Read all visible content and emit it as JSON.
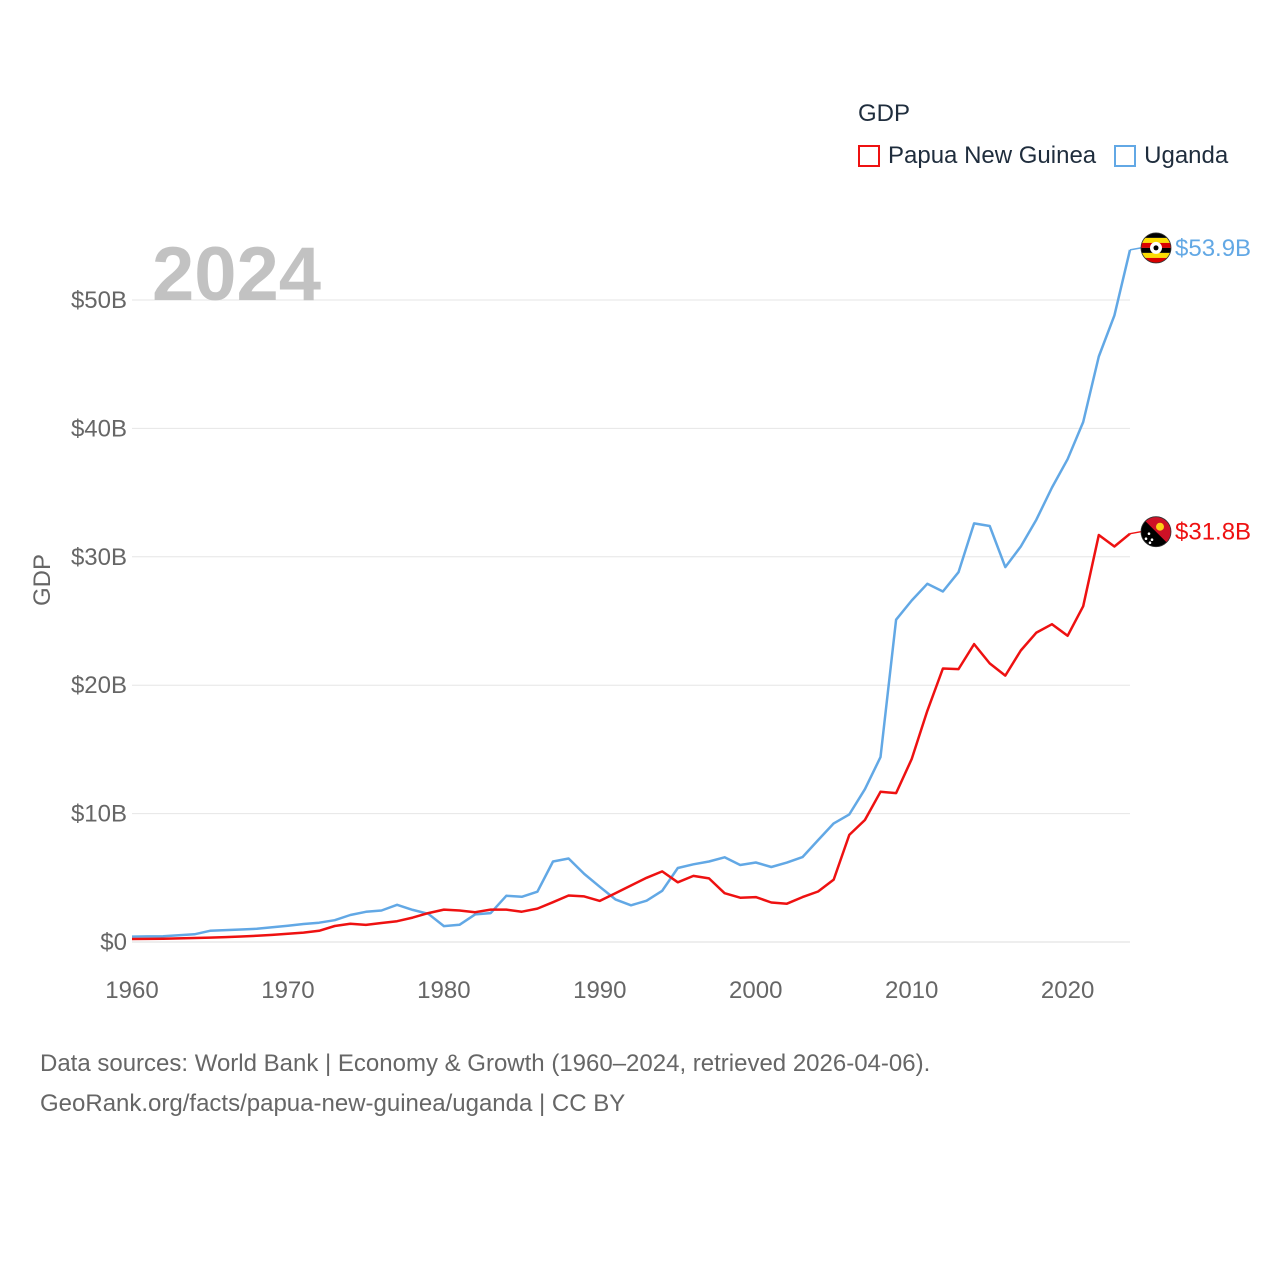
{
  "legend": {
    "title": "GDP",
    "items": [
      {
        "label": "Papua New Guinea",
        "color": "#ee1111"
      },
      {
        "label": "Uganda",
        "color": "#62a8e5"
      }
    ]
  },
  "year_label": "2024",
  "footer": {
    "line1": "Data sources: World Bank | Economy & Growth (1960–2024, retrieved 2026-04-06).",
    "line2": "GeoRank.org/facts/papua-new-guinea/uganda | CC BY"
  },
  "chart_data": {
    "type": "line",
    "title": "",
    "xlabel": "",
    "ylabel": "GDP",
    "xlim": [
      1960,
      2024
    ],
    "ylim": [
      0,
      55
    ],
    "x_ticks": [
      1960,
      1970,
      1980,
      1990,
      2000,
      2010,
      2020
    ],
    "y_ticks": [
      0,
      10,
      20,
      30,
      40,
      50
    ],
    "y_tick_labels": [
      "$0",
      "$10B",
      "$20B",
      "$30B",
      "$40B",
      "$50B"
    ],
    "grid": true,
    "legend_position": "top-right",
    "x": [
      1960,
      1961,
      1962,
      1963,
      1964,
      1965,
      1966,
      1967,
      1968,
      1969,
      1970,
      1971,
      1972,
      1973,
      1974,
      1975,
      1976,
      1977,
      1978,
      1979,
      1980,
      1981,
      1982,
      1983,
      1984,
      1985,
      1986,
      1987,
      1988,
      1989,
      1990,
      1991,
      1992,
      1993,
      1994,
      1995,
      1996,
      1997,
      1998,
      1999,
      2000,
      2001,
      2002,
      2003,
      2004,
      2005,
      2006,
      2007,
      2008,
      2009,
      2010,
      2011,
      2012,
      2013,
      2014,
      2015,
      2016,
      2017,
      2018,
      2019,
      2020,
      2021,
      2022,
      2023,
      2024
    ],
    "series": [
      {
        "name": "Papua New Guinea",
        "color": "#ee1111",
        "end_label": "$31.8B",
        "flag": "papua-new-guinea-flag-icon",
        "values": [
          0.23,
          0.24,
          0.26,
          0.28,
          0.31,
          0.34,
          0.38,
          0.43,
          0.48,
          0.55,
          0.65,
          0.73,
          0.87,
          1.25,
          1.42,
          1.33,
          1.48,
          1.62,
          1.9,
          2.25,
          2.52,
          2.45,
          2.32,
          2.52,
          2.52,
          2.36,
          2.6,
          3.1,
          3.62,
          3.55,
          3.2,
          3.8,
          4.4,
          5.0,
          5.5,
          4.65,
          5.15,
          4.95,
          3.8,
          3.45,
          3.5,
          3.08,
          2.98,
          3.5,
          3.93,
          4.86,
          8.34,
          9.5,
          11.7,
          11.6,
          14.25,
          18.0,
          21.3,
          21.25,
          23.2,
          21.7,
          20.75,
          22.7,
          24.1,
          24.75,
          23.85,
          26.15,
          31.7,
          30.8,
          31.8
        ]
      },
      {
        "name": "Uganda",
        "color": "#62a8e5",
        "end_label": "$53.9B",
        "flag": "uganda-flag-icon",
        "values": [
          0.42,
          0.44,
          0.45,
          0.52,
          0.6,
          0.87,
          0.93,
          0.97,
          1.03,
          1.15,
          1.27,
          1.4,
          1.5,
          1.7,
          2.1,
          2.35,
          2.45,
          2.9,
          2.5,
          2.2,
          1.24,
          1.34,
          2.15,
          2.25,
          3.6,
          3.52,
          3.92,
          6.27,
          6.5,
          5.3,
          4.3,
          3.32,
          2.86,
          3.22,
          3.99,
          5.76,
          6.05,
          6.27,
          6.6,
          6.0,
          6.19,
          5.84,
          6.18,
          6.61,
          7.94,
          9.24,
          9.94,
          11.9,
          14.4,
          25.1,
          26.6,
          27.9,
          27.3,
          28.8,
          32.6,
          32.4,
          29.2,
          30.8,
          32.9,
          35.4,
          37.6,
          40.5,
          45.6,
          48.8,
          53.9
        ]
      }
    ]
  }
}
